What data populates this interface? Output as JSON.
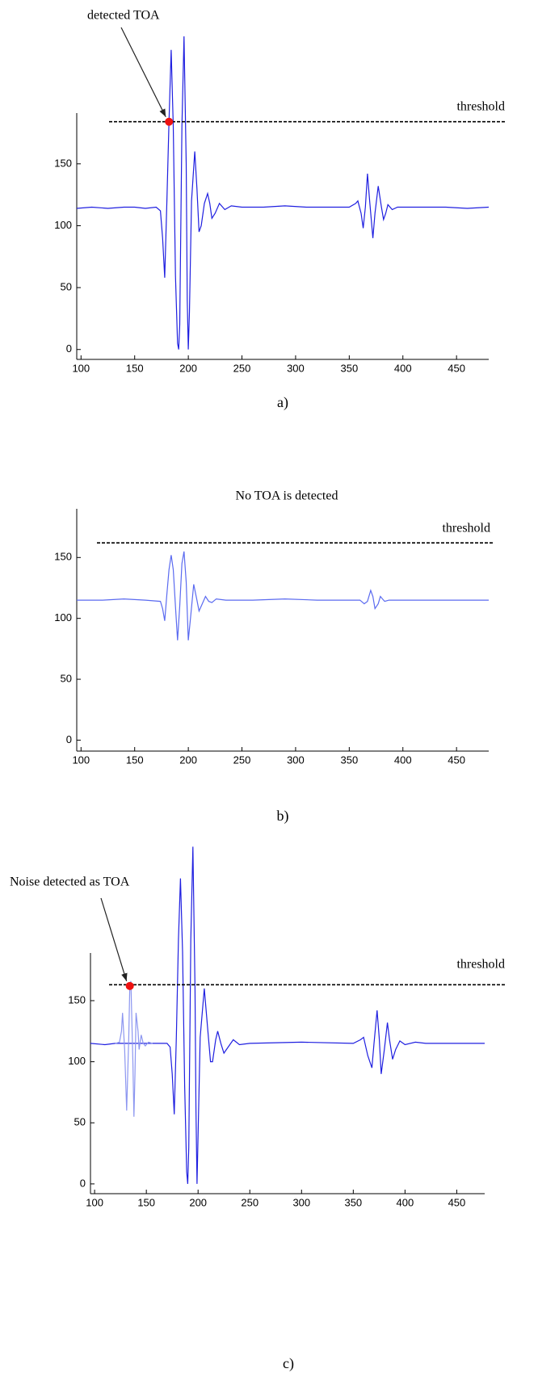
{
  "chart_data": [
    {
      "type": "line",
      "caption": "a)",
      "xlim": [
        96,
        480
      ],
      "ylim": [
        -8,
        191
      ],
      "xticks": [
        100,
        150,
        200,
        250,
        300,
        350,
        400,
        450
      ],
      "yticks": [
        0,
        50,
        100,
        150
      ],
      "threshold": {
        "value": 184,
        "label": "threshold"
      },
      "detection": {
        "x": 182,
        "y": 184,
        "label": "detected TOA"
      },
      "series": [
        {
          "color": "#1f1fe0",
          "x": [
            96,
            110,
            125,
            140,
            150,
            160,
            170,
            174,
            176,
            178,
            180,
            182,
            184,
            186,
            188,
            190,
            191,
            192,
            194,
            196,
            198,
            199,
            200,
            201,
            203,
            206,
            208,
            210,
            212,
            215,
            218,
            220,
            222,
            225,
            229,
            234,
            240,
            250,
            270,
            290,
            310,
            330,
            350,
            356,
            358,
            361,
            363,
            365,
            367,
            369,
            372,
            374,
            377,
            380,
            382,
            384,
            386,
            390,
            395,
            420,
            440,
            460,
            480
          ],
          "values": [
            114,
            115,
            114,
            115,
            115,
            114,
            115,
            112,
            90,
            58,
            120,
            184,
            242,
            180,
            60,
            5,
            0,
            20,
            180,
            253,
            150,
            40,
            0,
            30,
            120,
            160,
            130,
            95,
            100,
            118,
            126,
            118,
            106,
            110,
            118,
            113,
            116,
            115,
            115,
            116,
            115,
            115,
            115,
            118,
            120,
            110,
            98,
            115,
            142,
            120,
            90,
            110,
            132,
            115,
            105,
            110,
            117,
            113,
            115,
            115,
            115,
            114,
            115
          ]
        }
      ]
    },
    {
      "type": "line",
      "caption": "b)",
      "title": "No TOA is detected",
      "xlim": [
        96,
        480
      ],
      "ylim": [
        -9,
        190
      ],
      "xticks": [
        100,
        150,
        200,
        250,
        300,
        350,
        400,
        450
      ],
      "yticks": [
        0,
        50,
        100,
        150
      ],
      "threshold": {
        "value": 162,
        "label": "threshold"
      },
      "series": [
        {
          "color": "#5a6af0",
          "x": [
            96,
            120,
            140,
            160,
            174,
            176,
            178,
            180,
            182,
            184,
            186,
            188,
            190,
            192,
            194,
            196,
            198,
            200,
            202,
            205,
            208,
            210,
            213,
            216,
            219,
            222,
            226,
            235,
            260,
            290,
            320,
            360,
            364,
            367,
            370,
            372,
            374,
            377,
            379,
            381,
            383,
            387,
            420,
            450,
            480
          ],
          "values": [
            115,
            115,
            116,
            115,
            114,
            108,
            98,
            120,
            140,
            152,
            140,
            110,
            82,
            110,
            145,
            155,
            130,
            82,
            100,
            128,
            115,
            106,
            112,
            118,
            114,
            113,
            116,
            115,
            115,
            116,
            115,
            115,
            112,
            114,
            123,
            118,
            108,
            112,
            118,
            116,
            114,
            115,
            115,
            115,
            115
          ]
        }
      ]
    },
    {
      "type": "line",
      "caption": "c)",
      "xlim": [
        96,
        477
      ],
      "ylim": [
        -8,
        189
      ],
      "xticks": [
        100,
        150,
        200,
        250,
        300,
        350,
        400,
        450
      ],
      "yticks": [
        0,
        50,
        100,
        150
      ],
      "threshold": {
        "value": 163,
        "label": "threshold"
      },
      "detection": {
        "x": 134,
        "y": 162,
        "label": "Noise detected as TOA"
      },
      "series": [
        {
          "color": "#1f1fe0",
          "x": [
            96,
            110,
            120,
            140,
            160,
            170,
            173,
            175,
            177,
            179,
            181,
            183,
            185,
            187,
            189,
            190,
            191,
            193,
            195,
            197,
            198,
            199,
            200,
            202,
            206,
            209,
            212,
            214,
            217,
            219,
            222,
            225,
            229,
            234,
            240,
            250,
            300,
            350,
            357,
            360,
            364,
            368,
            370,
            373,
            375,
            377,
            380,
            383,
            385,
            388,
            391,
            395,
            400,
            410,
            420,
            477
          ],
          "values": [
            115,
            114,
            115,
            115,
            115,
            115,
            112,
            90,
            57,
            120,
            200,
            250,
            190,
            80,
            10,
            0,
            30,
            200,
            276,
            160,
            60,
            0,
            40,
            120,
            160,
            130,
            100,
            100,
            118,
            125,
            115,
            107,
            112,
            118,
            114,
            115,
            116,
            115,
            118,
            120,
            105,
            95,
            115,
            142,
            120,
            90,
            110,
            132,
            118,
            102,
            110,
            117,
            114,
            116,
            115,
            115
          ]
        },
        {
          "color": "#8c96f0",
          "x": [
            120,
            124,
            126,
            127,
            129,
            131,
            133,
            134,
            135,
            137,
            138,
            139,
            140,
            142,
            143,
            145,
            147,
            149,
            152,
            156
          ],
          "values": [
            115,
            116,
            125,
            140,
            110,
            60,
            120,
            162,
            166,
            100,
            55,
            90,
            140,
            125,
            110,
            122,
            115,
            113,
            116,
            115
          ]
        }
      ]
    }
  ]
}
